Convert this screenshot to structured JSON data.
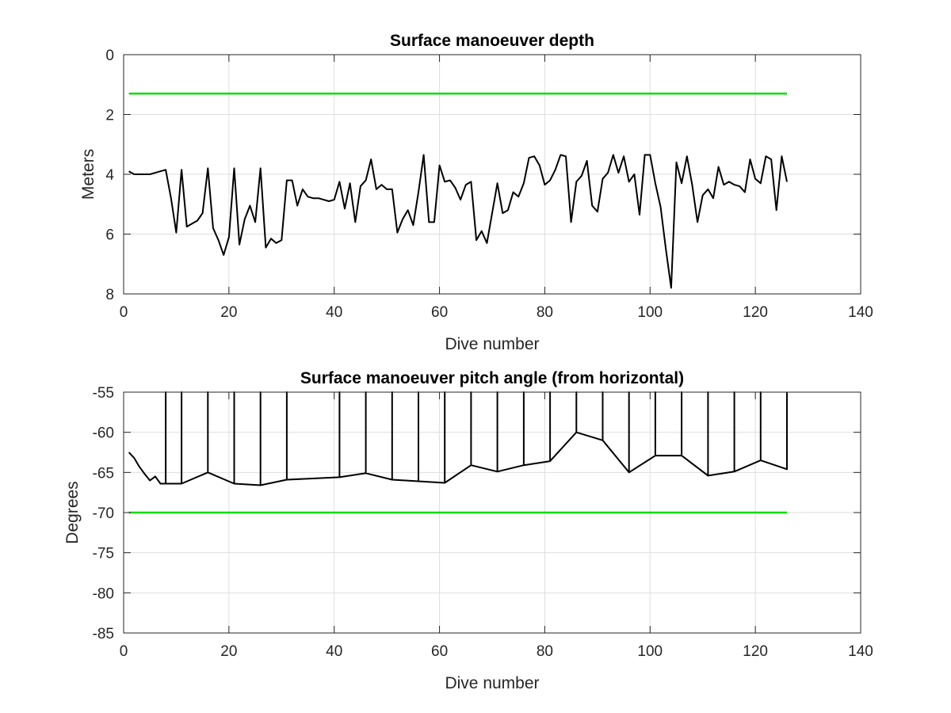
{
  "figure": {
    "background": "#ffffff",
    "grid": true
  },
  "chart_data": [
    {
      "type": "line",
      "title": "Surface manoeuver depth",
      "xlabel": "Dive number",
      "ylabel": "Meters",
      "xlim": [
        0,
        140
      ],
      "ylim": [
        0,
        8
      ],
      "y_reversed": true,
      "xticks": [
        0,
        20,
        40,
        60,
        80,
        100,
        120,
        140
      ],
      "yticks": [
        0,
        2,
        4,
        6,
        8
      ],
      "series": [
        {
          "color": "#000000",
          "x": [
            1,
            2,
            3,
            4,
            5,
            6,
            7,
            8,
            9,
            10,
            11,
            12,
            13,
            14,
            15,
            16,
            17,
            18,
            19,
            20,
            21,
            22,
            23,
            24,
            25,
            26,
            27,
            28,
            29,
            30,
            31,
            32,
            33,
            34,
            35,
            36,
            37,
            38,
            39,
            40,
            41,
            42,
            43,
            44,
            45,
            46,
            47,
            48,
            49,
            50,
            51,
            52,
            53,
            54,
            55,
            56,
            57,
            58,
            59,
            60,
            61,
            62,
            63,
            64,
            65,
            66,
            67,
            68,
            69,
            70,
            71,
            72,
            73,
            74,
            75,
            76,
            77,
            78,
            79,
            80,
            81,
            82,
            83,
            84,
            85,
            86,
            87,
            88,
            89,
            90,
            91,
            92,
            93,
            94,
            95,
            96,
            97,
            98,
            99,
            100,
            101,
            102,
            103,
            104,
            105,
            106,
            107,
            108,
            109,
            110,
            111,
            112,
            113,
            114,
            115,
            116,
            117,
            118,
            119,
            120,
            121,
            122,
            123,
            124,
            125,
            126
          ],
          "y": [
            3.9,
            4.0,
            4.0,
            4.0,
            4.0,
            3.95,
            3.9,
            3.85,
            4.8,
            5.95,
            3.85,
            5.75,
            5.65,
            5.55,
            5.3,
            3.8,
            5.8,
            6.2,
            6.7,
            6.1,
            3.8,
            6.35,
            5.5,
            5.05,
            5.6,
            3.8,
            6.45,
            6.15,
            6.3,
            6.2,
            4.2,
            4.2,
            5.05,
            4.5,
            4.75,
            4.8,
            4.8,
            4.85,
            4.9,
            4.85,
            4.25,
            5.15,
            4.3,
            5.6,
            4.4,
            4.2,
            3.5,
            4.5,
            4.35,
            4.5,
            4.5,
            5.95,
            5.5,
            5.2,
            5.7,
            4.6,
            3.35,
            5.6,
            5.6,
            3.7,
            4.25,
            4.2,
            4.45,
            4.85,
            4.35,
            4.25,
            6.2,
            5.9,
            6.3,
            5.3,
            4.3,
            5.3,
            5.2,
            4.6,
            4.75,
            4.3,
            3.45,
            3.4,
            3.7,
            4.35,
            4.2,
            3.85,
            3.35,
            3.4,
            5.6,
            4.25,
            4.05,
            3.55,
            5.05,
            5.25,
            4.15,
            3.95,
            3.35,
            3.95,
            3.4,
            4.25,
            4.0,
            5.35,
            3.35,
            3.35,
            4.3,
            5.1,
            6.5,
            7.8,
            3.6,
            4.3,
            3.4,
            4.35,
            5.6,
            4.7,
            4.5,
            4.8,
            3.75,
            4.35,
            4.25,
            4.35,
            4.4,
            4.6,
            3.5,
            4.15,
            4.3,
            3.4,
            3.5,
            5.2,
            3.4,
            4.25
          ]
        },
        {
          "color": "#00dd00",
          "x": [
            1,
            126
          ],
          "y": [
            1.3,
            1.3
          ]
        }
      ]
    },
    {
      "type": "line",
      "title": "Surface manoeuver pitch angle (from horizontal)",
      "xlabel": "Dive number",
      "ylabel": "Degrees",
      "xlim": [
        0,
        140
      ],
      "ylim": [
        -85,
        -55
      ],
      "xticks": [
        0,
        20,
        40,
        60,
        80,
        100,
        120,
        140
      ],
      "yticks": [
        -85,
        -80,
        -75,
        -70,
        -65,
        -60,
        -55
      ],
      "series": [
        {
          "color": "#000000",
          "x": [
            1,
            2,
            3,
            4,
            5,
            6,
            7,
            8,
            8,
            8,
            11,
            11,
            11,
            16,
            16,
            16,
            21,
            21,
            21,
            26,
            26,
            26,
            31,
            31,
            31,
            41,
            41,
            41,
            46,
            46,
            46,
            51,
            51,
            51,
            56,
            56,
            56,
            61,
            61,
            61,
            66,
            66,
            66,
            71,
            71,
            71,
            76,
            76,
            76,
            81,
            81,
            81,
            86,
            86,
            86,
            91,
            91,
            91,
            96,
            96,
            96,
            101,
            101,
            101,
            106,
            106,
            106,
            111,
            111,
            111,
            116,
            116,
            116,
            121,
            121,
            121,
            126,
            126
          ],
          "y": [
            -62.5,
            -63.2,
            -64.3,
            -65.2,
            -66.0,
            -65.5,
            -66.4,
            -66.4,
            -55,
            -66.4,
            -66.4,
            -55,
            -66.4,
            -65.0,
            -55,
            -65.0,
            -66.4,
            -55,
            -66.4,
            -66.6,
            -55,
            -66.6,
            -65.9,
            -55,
            -65.9,
            -65.6,
            -55,
            -65.6,
            -65.1,
            -55,
            -65.1,
            -65.9,
            -55,
            -65.9,
            -66.1,
            -55,
            -66.1,
            -66.3,
            -55,
            -66.3,
            -64.1,
            -55,
            -64.1,
            -64.9,
            -55,
            -64.9,
            -64.1,
            -55,
            -64.1,
            -63.6,
            -55,
            -63.6,
            -60.0,
            -55,
            -60.0,
            -61.0,
            -55,
            -61.0,
            -65.0,
            -55,
            -65.0,
            -62.9,
            -55,
            -62.9,
            -62.9,
            -55,
            -62.9,
            -65.4,
            -55,
            -65.4,
            -64.9,
            -55,
            -64.9,
            -63.5,
            -55,
            -63.5,
            -64.6,
            -55
          ]
        },
        {
          "color": "#00dd00",
          "x": [
            1,
            126
          ],
          "y": [
            -70,
            -70
          ]
        }
      ]
    }
  ]
}
